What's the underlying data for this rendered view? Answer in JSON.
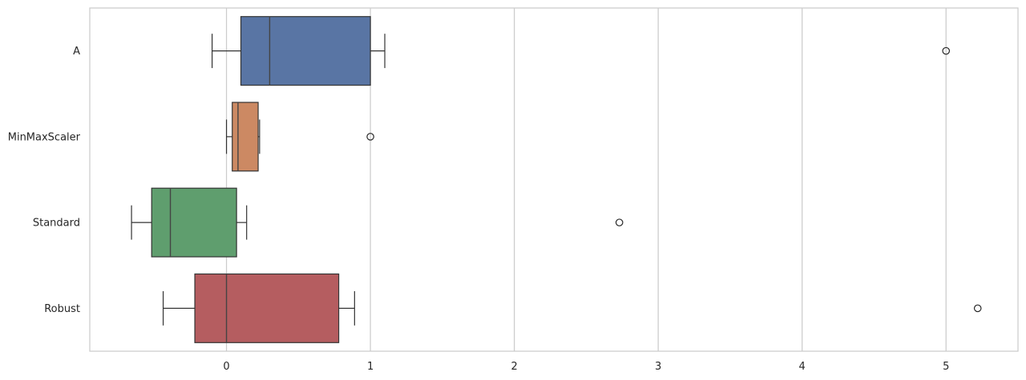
{
  "chart_data": {
    "type": "boxplot",
    "orientation": "horizontal",
    "title": "",
    "xlabel": "",
    "ylabel": "",
    "xlim": [
      -0.95,
      5.5
    ],
    "x_ticks": [
      0,
      1,
      2,
      3,
      4,
      5
    ],
    "x_tick_labels": [
      "0",
      "1",
      "2",
      "3",
      "4",
      "5"
    ],
    "grid": "vertical",
    "categories": [
      "A",
      "MinMaxScaler",
      "Standard",
      "Robust"
    ],
    "series": [
      {
        "category": "A",
        "whisker_low": -0.1,
        "q1": 0.1,
        "median": 0.3,
        "q3": 1.0,
        "whisker_high": 1.1,
        "outliers": [
          5.0
        ],
        "color": "#5975a4"
      },
      {
        "category": "MinMaxScaler",
        "whisker_low": 0.0,
        "q1": 0.04,
        "median": 0.08,
        "q3": 0.22,
        "whisker_high": 0.23,
        "outliers": [
          1.0
        ],
        "color": "#cc8963"
      },
      {
        "category": "Standard",
        "whisker_low": -0.66,
        "q1": -0.52,
        "median": -0.39,
        "q3": 0.07,
        "whisker_high": 0.14,
        "outliers": [
          2.73
        ],
        "color": "#5f9e6e"
      },
      {
        "category": "Robust",
        "whisker_low": -0.44,
        "q1": -0.22,
        "median": 0.0,
        "q3": 0.78,
        "whisker_high": 0.89,
        "outliers": [
          5.22
        ],
        "color": "#b55d60"
      }
    ]
  }
}
